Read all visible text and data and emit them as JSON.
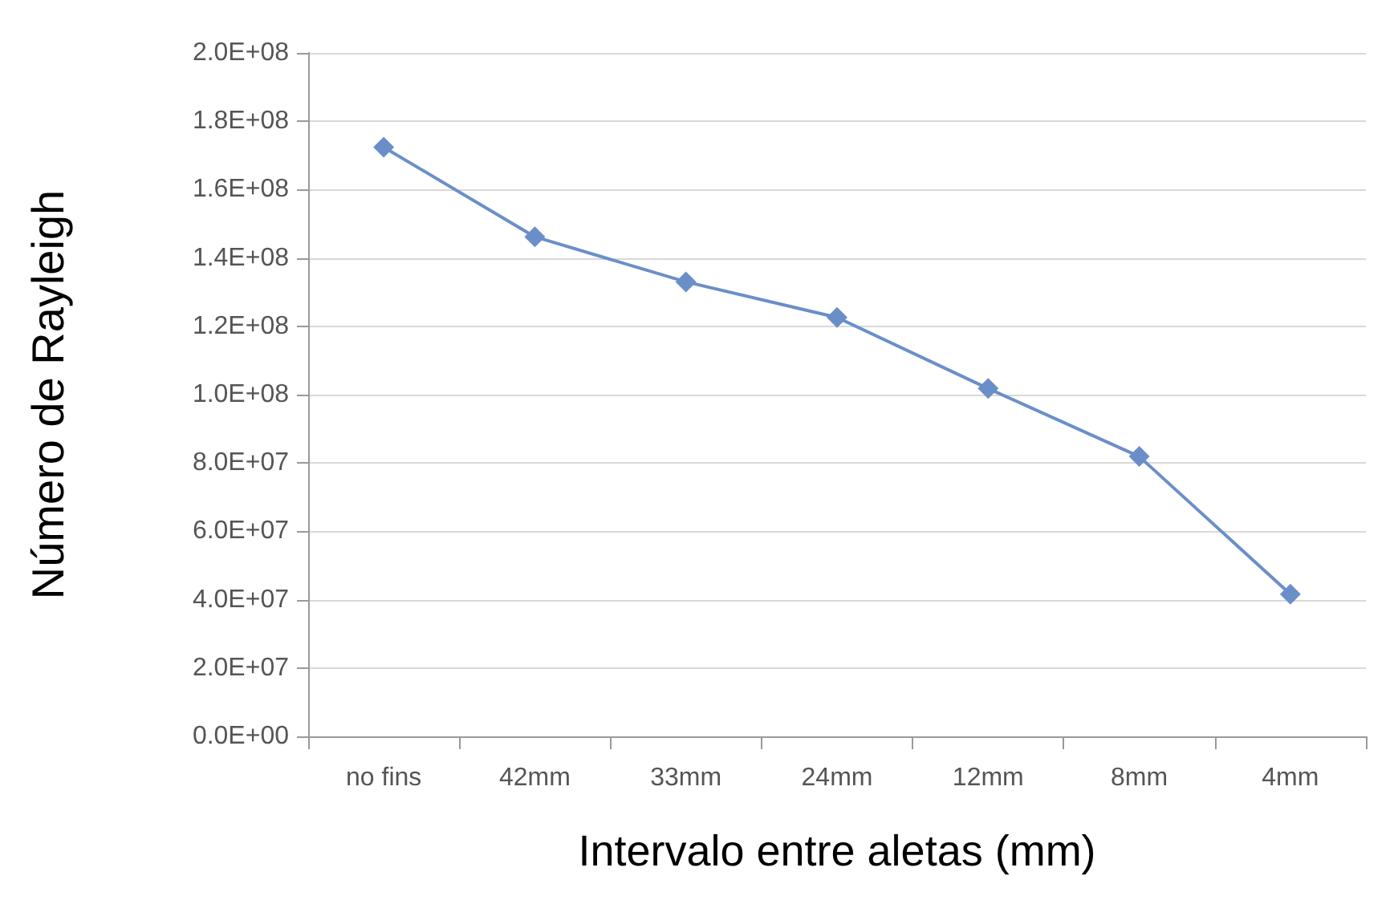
{
  "chart_data": {
    "type": "line",
    "xlabel": "Intervalo entre aletas (mm)",
    "ylabel": "Número de Rayleigh",
    "categories": [
      "no fins",
      "42mm",
      "33mm",
      "24mm",
      "12mm",
      "8mm",
      "4mm"
    ],
    "series": [
      {
        "color": "#6a8fc8",
        "values": [
          172400000,
          146200000,
          133000000,
          122600000,
          101800000,
          81900000,
          41600000
        ]
      }
    ],
    "ylim": [
      0,
      200000000
    ],
    "yticks": [
      {
        "value": 0,
        "label": "0.0E+00"
      },
      {
        "value": 20000000,
        "label": "2.0E+07"
      },
      {
        "value": 40000000,
        "label": "4.0E+07"
      },
      {
        "value": 60000000,
        "label": "6.0E+07"
      },
      {
        "value": 80000000,
        "label": "8.0E+07"
      },
      {
        "value": 100000000,
        "label": "1.0E+08"
      },
      {
        "value": 120000000,
        "label": "1.2E+08"
      },
      {
        "value": 140000000,
        "label": "1.4E+08"
      },
      {
        "value": 160000000,
        "label": "1.6E+08"
      },
      {
        "value": 180000000,
        "label": "1.8E+08"
      },
      {
        "value": 200000000,
        "label": "2.0E+08"
      }
    ],
    "grid": "y",
    "marker": "diamond",
    "line_style": "solid"
  }
}
